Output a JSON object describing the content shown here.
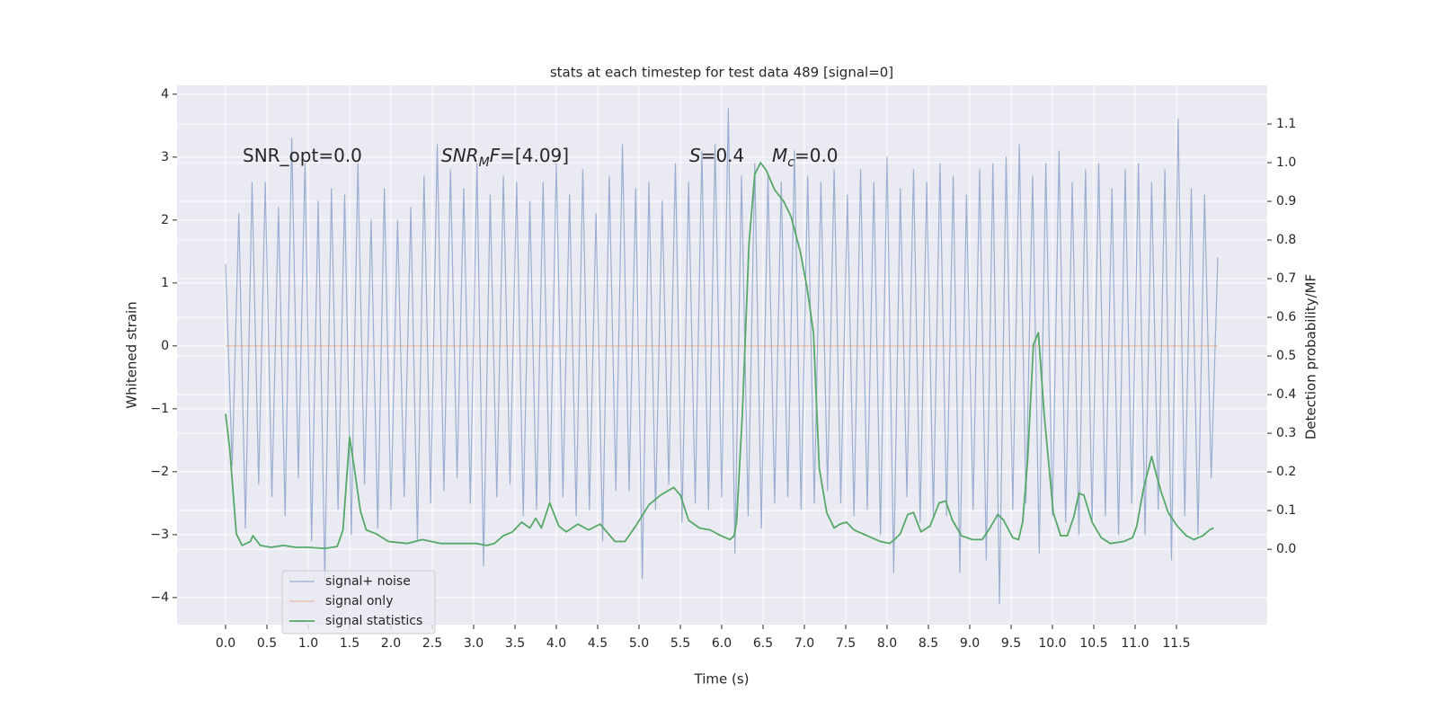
{
  "chart_data": {
    "type": "line",
    "title": "stats at each timestep for test data 489 [signal=0]",
    "xlabel": "Time (s)",
    "ylabel": "Whitened strain",
    "y2label": "Detection probability/MF",
    "grid": true,
    "legend": "lower left",
    "annotations": [
      [
        "SNR_opt=0.0"
      ],
      [
        "SNR",
        "M",
        "F",
        "=[4.09]"
      ],
      [
        "S",
        "=0.4"
      ],
      [
        "M",
        "c",
        "=0.0"
      ]
    ],
    "xlim": [
      -0.587,
      12.598
    ],
    "xticks": [
      {
        "value": 0,
        "label": "0.0"
      },
      0.5,
      {
        "value": 1,
        "label": "1.0"
      },
      1.5,
      {
        "value": 2,
        "label": "2.0"
      },
      2.5,
      {
        "value": 3,
        "label": "3.0"
      },
      3.5,
      {
        "value": 4,
        "label": "4.0"
      },
      4.5,
      {
        "value": 5,
        "label": "5.0"
      },
      5.5,
      {
        "value": 6,
        "label": "6.0"
      },
      6.5,
      {
        "value": 7,
        "label": "7.0"
      },
      7.5,
      {
        "value": 8,
        "label": "8.0"
      },
      8.5,
      {
        "value": 9,
        "label": "9.0"
      },
      9.5,
      {
        "value": 10,
        "label": "10.0"
      },
      10.5,
      {
        "value": 11,
        "label": "11.0"
      },
      11.5
    ],
    "ylim": [
      -4.43,
      4.14
    ],
    "yticks": [
      {
        "value": -4,
        "label": "−4"
      },
      {
        "value": -3,
        "label": "−3"
      },
      {
        "value": -2,
        "label": "−2"
      },
      {
        "value": -1,
        "label": "−1"
      },
      0,
      1,
      2,
      3,
      4
    ],
    "y2lim": [
      -0.195,
      1.2
    ],
    "y2ticks": [
      {
        "value": 0,
        "label": "0.0"
      },
      0.1,
      0.2,
      0.3,
      0.4,
      0.5,
      0.6,
      0.7,
      0.8,
      0.9,
      {
        "value": 1,
        "label": "1.0"
      },
      1.1
    ],
    "series": [
      {
        "name": "signal+ noise",
        "color": "#4c72b0",
        "x": [
          0,
          0.08,
          0.16,
          0.24,
          0.32,
          0.4,
          0.48,
          0.56,
          0.64,
          0.72,
          0.8,
          0.88,
          0.96,
          1.04,
          1.12,
          1.2,
          1.28,
          1.36,
          1.44,
          1.52,
          1.6,
          1.68,
          1.76,
          1.84,
          1.92,
          2.0,
          2.08,
          2.16,
          2.24,
          2.32,
          2.4,
          2.48,
          2.56,
          2.64,
          2.72,
          2.8,
          2.88,
          2.96,
          3.04,
          3.12,
          3.2,
          3.28,
          3.36,
          3.44,
          3.52,
          3.6,
          3.68,
          3.76,
          3.84,
          3.92,
          4.0,
          4.08,
          4.16,
          4.24,
          4.32,
          4.4,
          4.48,
          4.56,
          4.64,
          4.72,
          4.8,
          4.88,
          4.96,
          5.04,
          5.12,
          5.2,
          5.28,
          5.36,
          5.44,
          5.52,
          5.6,
          5.68,
          5.76,
          5.84,
          5.92,
          6.0,
          6.08,
          6.16,
          6.24,
          6.32,
          6.4,
          6.48,
          6.56,
          6.64,
          6.72,
          6.8,
          6.88,
          6.96,
          7.04,
          7.12,
          7.2,
          7.28,
          7.36,
          7.44,
          7.52,
          7.6,
          7.68,
          7.76,
          7.84,
          7.92,
          8.0,
          8.08,
          8.16,
          8.24,
          8.32,
          8.4,
          8.48,
          8.56,
          8.64,
          8.72,
          8.8,
          8.88,
          8.96,
          9.04,
          9.12,
          9.2,
          9.28,
          9.36,
          9.44,
          9.52,
          9.6,
          9.68,
          9.76,
          9.84,
          9.92,
          10.0,
          10.08,
          10.16,
          10.24,
          10.32,
          10.4,
          10.48,
          10.56,
          10.64,
          10.72,
          10.8,
          10.88,
          10.96,
          11.04,
          11.12,
          11.2,
          11.28,
          11.36,
          11.44,
          11.52,
          11.6,
          11.68,
          11.76,
          11.84,
          11.92,
          12.0
        ],
        "values": [
          1.3,
          -1.9,
          2.1,
          -2.9,
          2.6,
          -2.2,
          2.6,
          -2.4,
          2.2,
          -2.7,
          3.3,
          -2.1,
          2.9,
          -3.1,
          2.3,
          -3.7,
          2.5,
          -2.6,
          2.4,
          -3.0,
          2.9,
          -2.2,
          2.0,
          -2.9,
          2.5,
          -2.6,
          2.0,
          -2.4,
          2.2,
          -3.1,
          2.7,
          -2.5,
          3.2,
          -2.3,
          2.8,
          -2.1,
          2.5,
          -2.5,
          2.9,
          -3.5,
          2.4,
          -2.4,
          2.7,
          -2.2,
          2.6,
          -2.7,
          2.3,
          -2.6,
          2.6,
          -2.5,
          2.9,
          -2.4,
          2.4,
          -2.7,
          2.8,
          -2.6,
          2.1,
          -3.1,
          2.7,
          -2.3,
          3.2,
          -2.3,
          2.5,
          -3.7,
          2.6,
          -2.6,
          2.3,
          -2.2,
          2.9,
          -2.8,
          2.6,
          -2.5,
          3.1,
          -2.6,
          3.2,
          -2.4,
          3.77,
          -3.3,
          2.7,
          -2.7,
          2.9,
          -2.9,
          2.7,
          -2.5,
          2.6,
          -2.4,
          3.1,
          -2.6,
          2.7,
          -2.5,
          2.6,
          -2.3,
          2.8,
          -2.5,
          2.4,
          -2.7,
          2.8,
          -2.6,
          2.6,
          -3.0,
          3.0,
          -3.6,
          2.5,
          -2.4,
          2.8,
          -2.8,
          2.6,
          -2.7,
          2.9,
          -2.7,
          2.7,
          -3.6,
          2.4,
          -2.6,
          2.8,
          -3.4,
          2.9,
          -4.1,
          3.0,
          -2.6,
          3.2,
          -2.5,
          2.7,
          -3.3,
          2.9,
          -2.7,
          3.1,
          -2.8,
          2.6,
          -3.0,
          2.8,
          -2.8,
          2.9,
          -2.7,
          2.5,
          -3.0,
          2.8,
          -2.5,
          2.9,
          -3.0,
          2.6,
          -2.6,
          2.8,
          -3.4,
          3.6,
          -2.7,
          2.5,
          -3.0,
          2.4,
          -2.1,
          1.4
        ]
      },
      {
        "name": "signal only",
        "color": "#dd8452",
        "x": [
          0,
          12.0
        ],
        "values": [
          0,
          0
        ]
      },
      {
        "name": "signal statistics",
        "color": "#55a868",
        "axis": "y2",
        "x": [
          0.0,
          0.05,
          0.13,
          0.2,
          0.3,
          0.33,
          0.42,
          0.55,
          0.7,
          0.85,
          1.0,
          1.2,
          1.35,
          1.42,
          1.5,
          1.55,
          1.63,
          1.7,
          1.82,
          1.97,
          2.2,
          2.38,
          2.6,
          2.87,
          3.03,
          3.16,
          3.25,
          3.36,
          3.47,
          3.58,
          3.68,
          3.75,
          3.82,
          3.92,
          4.03,
          4.12,
          4.26,
          4.39,
          4.53,
          4.71,
          4.83,
          4.96,
          5.12,
          5.26,
          5.42,
          5.5,
          5.6,
          5.73,
          5.86,
          5.99,
          6.1,
          6.15,
          6.18,
          6.25,
          6.33,
          6.4,
          6.47,
          6.54,
          6.64,
          6.75,
          6.84,
          6.95,
          7.03,
          7.11,
          7.18,
          7.27,
          7.36,
          7.43,
          7.51,
          7.6,
          7.76,
          7.92,
          8.03,
          8.09,
          8.16,
          8.25,
          8.32,
          8.41,
          8.52,
          8.63,
          8.71,
          8.79,
          8.9,
          9.03,
          9.15,
          9.23,
          9.34,
          9.41,
          9.52,
          9.59,
          9.64,
          9.7,
          9.77,
          9.83,
          9.9,
          10.01,
          10.1,
          10.18,
          10.26,
          10.32,
          10.38,
          10.48,
          10.59,
          10.7,
          10.86,
          10.97,
          11.02,
          11.1,
          11.2,
          11.26,
          11.32,
          11.4,
          11.51,
          11.62,
          11.71,
          11.82,
          11.9,
          11.95
        ],
        "values": [
          0.35,
          0.26,
          0.04,
          0.01,
          0.02,
          0.035,
          0.01,
          0.005,
          0.01,
          0.005,
          0.005,
          0.002,
          0.007,
          0.05,
          0.29,
          0.22,
          0.1,
          0.05,
          0.04,
          0.02,
          0.015,
          0.025,
          0.015,
          0.015,
          0.015,
          0.01,
          0.015,
          0.035,
          0.045,
          0.07,
          0.055,
          0.08,
          0.055,
          0.12,
          0.06,
          0.045,
          0.065,
          0.05,
          0.065,
          0.02,
          0.02,
          0.06,
          0.115,
          0.14,
          0.16,
          0.14,
          0.075,
          0.055,
          0.05,
          0.035,
          0.025,
          0.035,
          0.07,
          0.35,
          0.79,
          0.97,
          1.0,
          0.98,
          0.93,
          0.9,
          0.86,
          0.77,
          0.68,
          0.56,
          0.21,
          0.095,
          0.055,
          0.065,
          0.07,
          0.05,
          0.035,
          0.02,
          0.015,
          0.025,
          0.04,
          0.09,
          0.095,
          0.045,
          0.06,
          0.12,
          0.125,
          0.075,
          0.035,
          0.025,
          0.025,
          0.05,
          0.09,
          0.075,
          0.03,
          0.025,
          0.07,
          0.23,
          0.53,
          0.56,
          0.35,
          0.095,
          0.035,
          0.035,
          0.085,
          0.145,
          0.14,
          0.07,
          0.03,
          0.015,
          0.02,
          0.03,
          0.06,
          0.155,
          0.24,
          0.19,
          0.145,
          0.095,
          0.06,
          0.035,
          0.025,
          0.035,
          0.05,
          0.055
        ]
      }
    ]
  }
}
